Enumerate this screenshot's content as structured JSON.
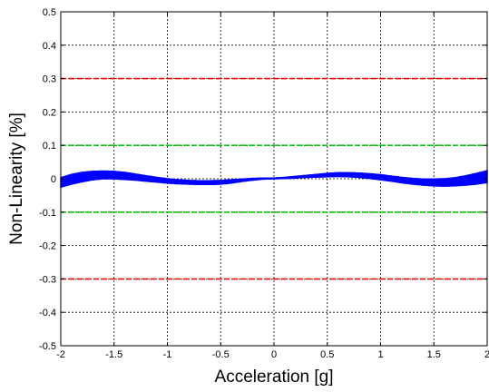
{
  "chart_data": {
    "type": "line",
    "title": "",
    "xlabel": "Acceleration [g]",
    "ylabel": "Non-Linearity [%]",
    "xlim": [
      -2,
      2
    ],
    "ylim": [
      -0.5,
      0.5
    ],
    "x_ticks": [
      -2,
      -1.5,
      -1,
      -0.5,
      0,
      0.5,
      1,
      1.5,
      2
    ],
    "x_tick_labels": [
      "-2",
      "-1.5",
      "-1",
      "-0.5",
      "0",
      "0.5",
      "1",
      "1.5",
      "2"
    ],
    "y_ticks": [
      0.5,
      0.4,
      0.3,
      0.2,
      0.1,
      0,
      -0.1,
      -0.2,
      -0.3,
      -0.4,
      -0.5
    ],
    "y_tick_labels": [
      "0.5",
      "0.4",
      "0.3",
      "0.2",
      "0.1",
      "0",
      "-0.1",
      "-0.2",
      "-0.3",
      "-0.4",
      "-0.5"
    ],
    "grid": true,
    "reference_lines": [
      {
        "y": 0.3,
        "color": "#ff0000",
        "style": "dashed"
      },
      {
        "y": 0.1,
        "color": "#00cc00",
        "style": "dashed"
      },
      {
        "y": -0.1,
        "color": "#00cc00",
        "style": "dashed"
      },
      {
        "y": -0.3,
        "color": "#ff0000",
        "style": "dashed"
      }
    ],
    "series_color": "#0000ff",
    "band": {
      "x": [
        -2.0,
        -1.9,
        -1.8,
        -1.7,
        -1.6,
        -1.5,
        -1.4,
        -1.3,
        -1.2,
        -1.1,
        -1.0,
        -0.9,
        -0.8,
        -0.7,
        -0.6,
        -0.5,
        -0.4,
        -0.3,
        -0.2,
        -0.1,
        0.0,
        0.1,
        0.2,
        0.3,
        0.4,
        0.5,
        0.6,
        0.7,
        0.8,
        0.9,
        1.0,
        1.1,
        1.2,
        1.3,
        1.4,
        1.5,
        1.6,
        1.7,
        1.8,
        1.9,
        2.0
      ],
      "upper": [
        0.003,
        0.013,
        0.019,
        0.022,
        0.023,
        0.022,
        0.019,
        0.014,
        0.009,
        0.004,
        0.0,
        -0.003,
        -0.005,
        -0.006,
        -0.006,
        -0.005,
        -0.003,
        -0.001,
        0.001,
        0.002,
        0.002,
        0.004,
        0.007,
        0.01,
        0.013,
        0.016,
        0.018,
        0.018,
        0.017,
        0.015,
        0.012,
        0.008,
        0.004,
        0.001,
        -0.001,
        -0.001,
        0.0,
        0.003,
        0.009,
        0.016,
        0.024
      ],
      "lower": [
        -0.025,
        -0.016,
        -0.009,
        -0.003,
        0.0,
        0.0,
        -0.002,
        -0.004,
        -0.007,
        -0.01,
        -0.013,
        -0.015,
        -0.016,
        -0.017,
        -0.017,
        -0.016,
        -0.013,
        -0.008,
        -0.004,
        -0.001,
        0.0,
        0.001,
        0.002,
        0.004,
        0.005,
        0.006,
        0.007,
        0.006,
        0.004,
        0.001,
        -0.003,
        -0.007,
        -0.012,
        -0.016,
        -0.019,
        -0.021,
        -0.022,
        -0.021,
        -0.019,
        -0.016,
        -0.011
      ]
    }
  }
}
